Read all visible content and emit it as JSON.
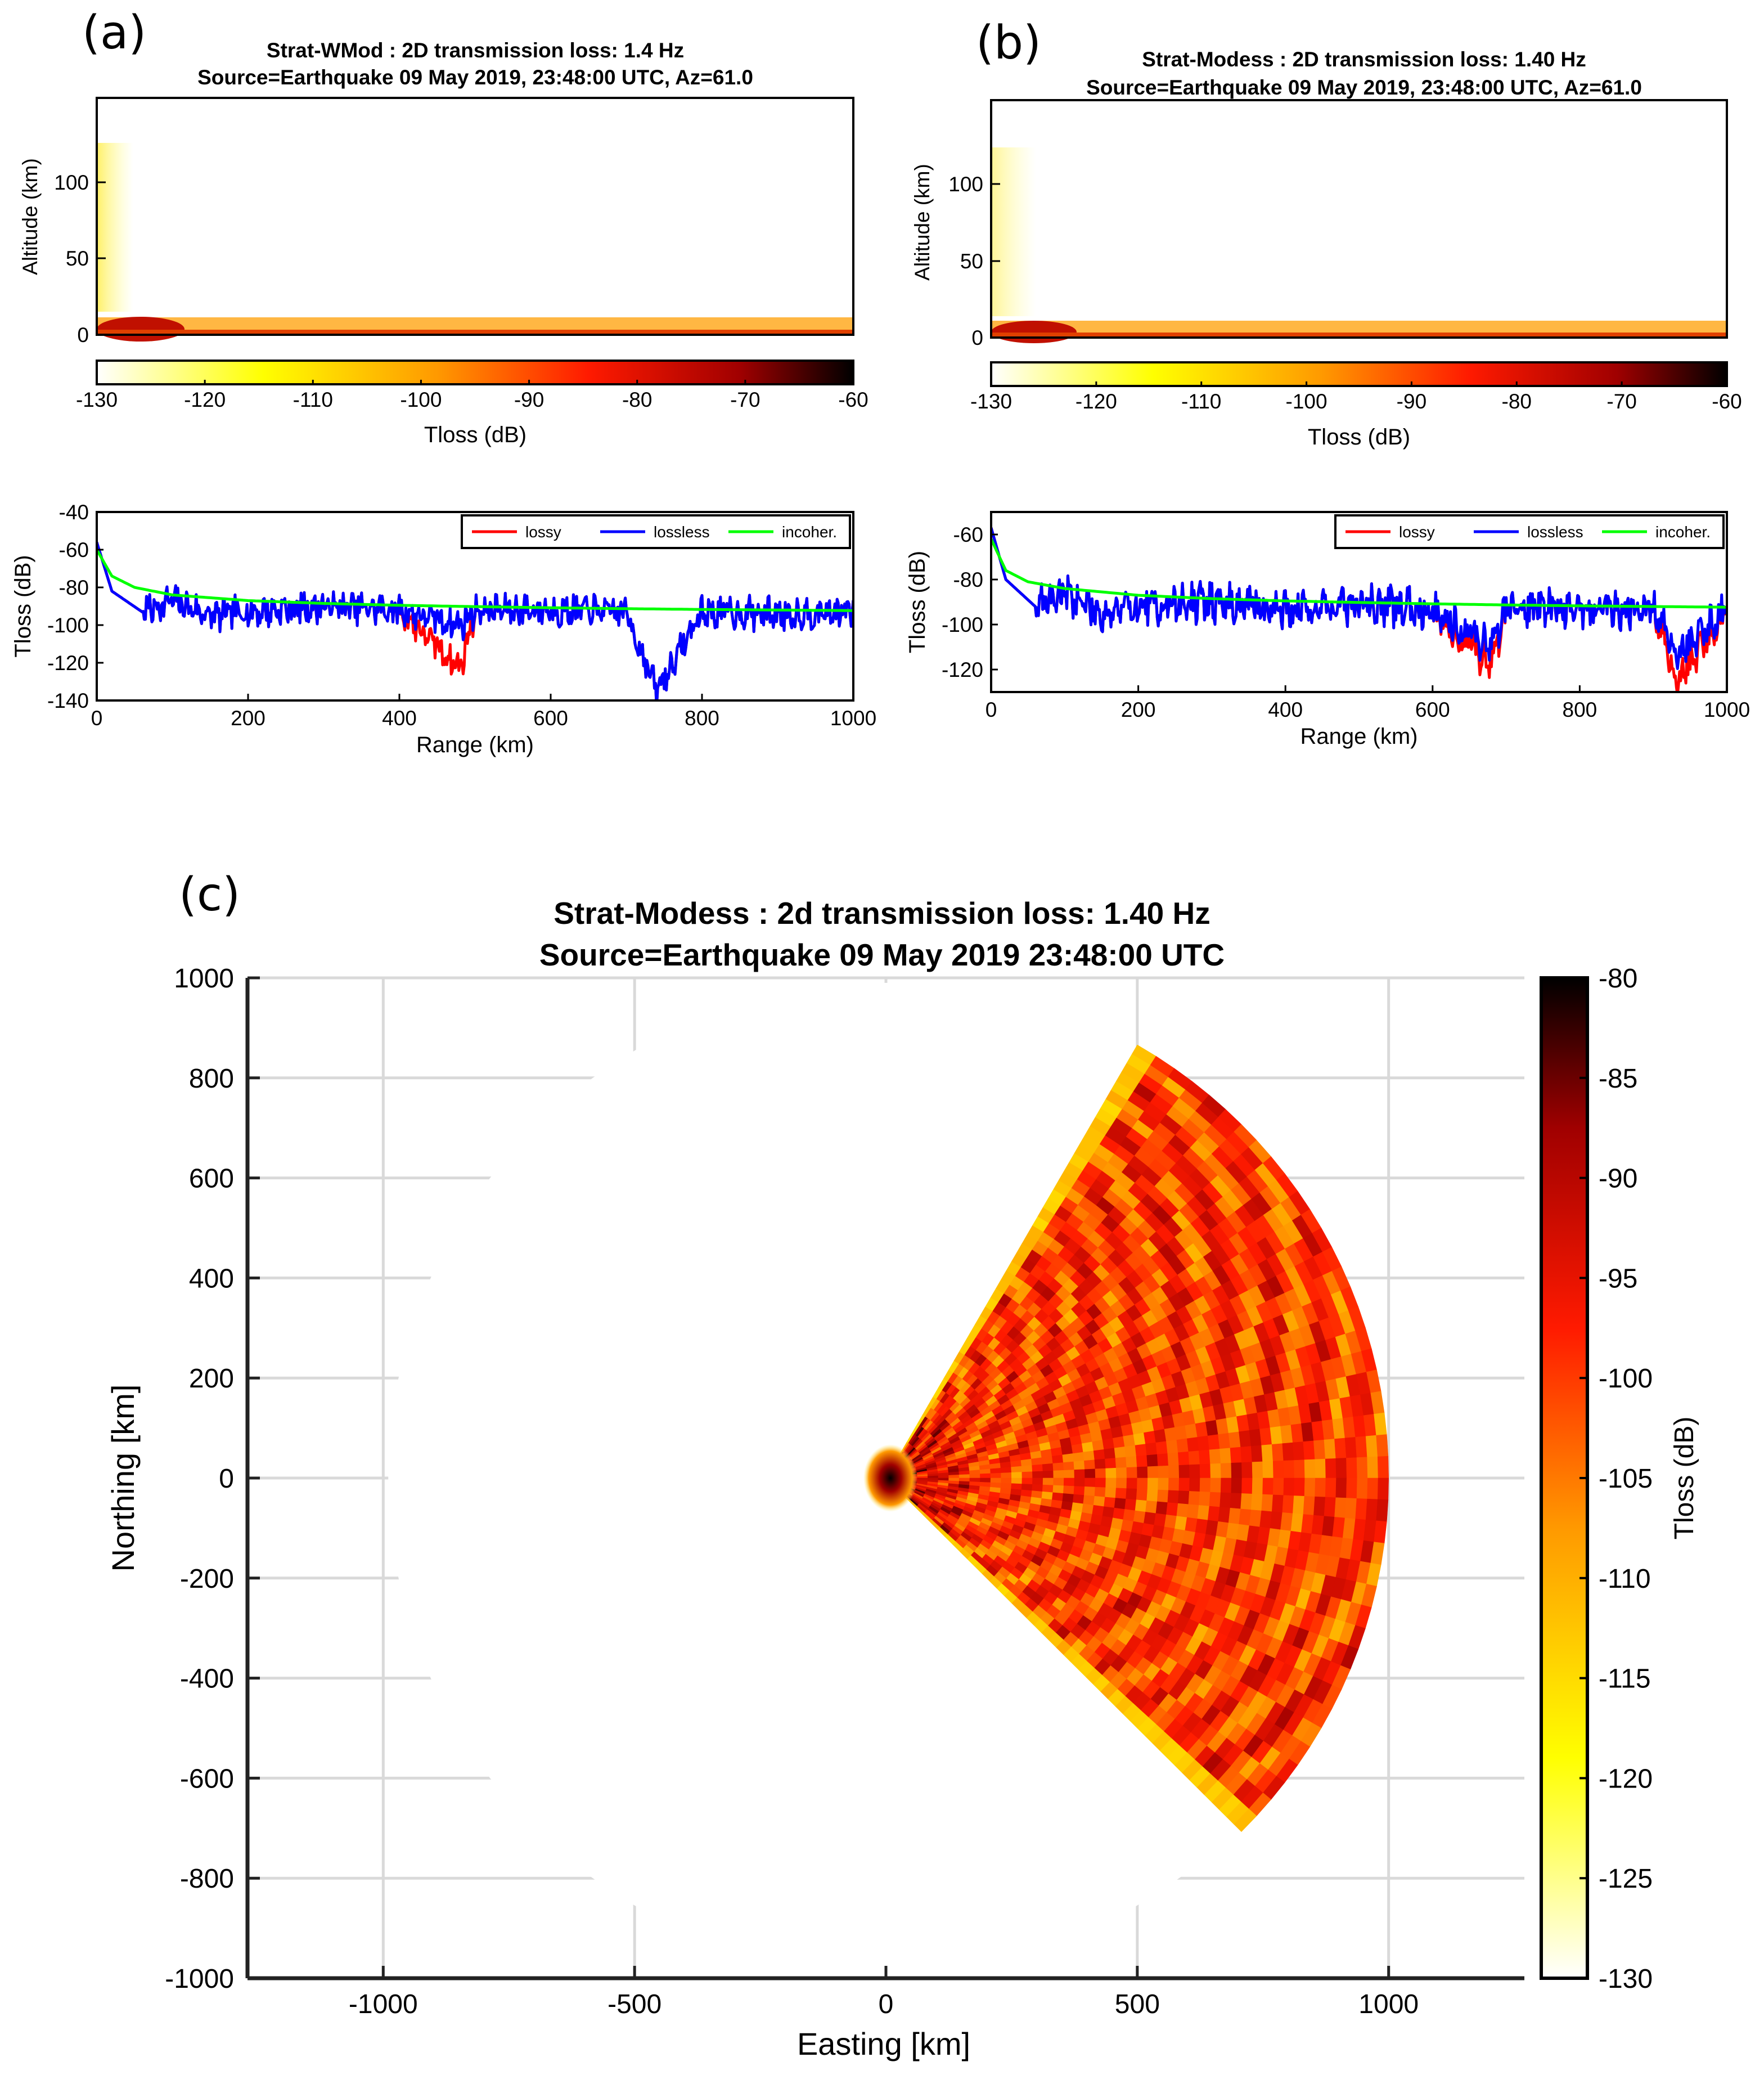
{
  "colors": {
    "colormap": [
      "#ffffff",
      "#ffff00",
      "#ff9900",
      "#ff1a00",
      "#a00000",
      "#000000"
    ],
    "lossy": "#ff0000",
    "lossless": "#0000ff",
    "incoherent": "#00ff00"
  },
  "chart_data": [
    {
      "id": "a",
      "panel_label": "(a)",
      "type": "heatmap",
      "title": [
        "Strat-WMod : 2D transmission loss: 1.4 Hz",
        "Source=Earthquake 09 May 2019, 23:48:00 UTC, Az=61.0"
      ],
      "xlim": [
        0,
        1000
      ],
      "ylabel": "Altitude (km)",
      "ylim": [
        0,
        150
      ],
      "yticks": [
        "0",
        "50",
        "100"
      ],
      "colorbar": {
        "label": "Tloss (dB)",
        "range": [
          -130,
          -60
        ],
        "ticks": [
          "-130",
          "-120",
          "-110",
          "-100",
          "-90",
          "-80",
          "-70",
          "-60"
        ]
      }
    },
    {
      "id": "a2",
      "type": "line",
      "xlabel": "Range (km)",
      "ylabel": "Tloss (dB)",
      "xlim": [
        0,
        1000
      ],
      "ylim": [
        -140,
        -40
      ],
      "xticks": [
        "0",
        "200",
        "400",
        "600",
        "800",
        "1000"
      ],
      "yticks": [
        "-140",
        "-120",
        "-100",
        "-80",
        "-60",
        "-40"
      ],
      "legend": {
        "position": "top-right"
      },
      "series": [
        {
          "name": "lossy",
          "x": [
            0,
            20,
            60,
            100,
            150,
            200,
            300,
            400,
            480,
            500,
            600,
            700,
            740,
            800,
            900,
            1000
          ],
          "y": [
            -56,
            -82,
            -93,
            -87,
            -95,
            -93,
            -90,
            -92,
            -123,
            -92,
            -92,
            -93,
            -135,
            -93,
            -94,
            -93
          ]
        },
        {
          "name": "lossless",
          "x": [
            0,
            20,
            60,
            100,
            150,
            200,
            300,
            400,
            480,
            500,
            600,
            700,
            740,
            800,
            900,
            1000
          ],
          "y": [
            -56,
            -82,
            -93,
            -87,
            -95,
            -93,
            -90,
            -92,
            -100,
            -92,
            -92,
            -93,
            -135,
            -93,
            -94,
            -93
          ]
        },
        {
          "name": "incoher.",
          "x": [
            0,
            20,
            50,
            100,
            200,
            300,
            400,
            500,
            600,
            700,
            800,
            900,
            1000
          ],
          "y": [
            -60,
            -74,
            -80,
            -84,
            -87,
            -88.5,
            -89.5,
            -90.2,
            -90.8,
            -91.3,
            -91.7,
            -92,
            -92.3
          ]
        }
      ]
    },
    {
      "id": "b",
      "panel_label": "(b)",
      "type": "heatmap",
      "title": [
        "Strat-Modess : 2D transmission loss: 1.40 Hz",
        "Source=Earthquake 09 May 2019, 23:48:00 UTC, Az=61.0"
      ],
      "xlim": [
        0,
        1000
      ],
      "ylabel": "Altitude (km)",
      "ylim": [
        0,
        150
      ],
      "yticks": [
        "0",
        "50",
        "100"
      ],
      "colorbar": {
        "label": "Tloss (dB)",
        "range": [
          -130,
          -60
        ],
        "ticks": [
          "-130",
          "-120",
          "-110",
          "-100",
          "-90",
          "-80",
          "-70",
          "-60"
        ]
      }
    },
    {
      "id": "b2",
      "type": "line",
      "xlabel": "Range (km)",
      "ylabel": "Tloss (dB)",
      "xlim": [
        0,
        1000
      ],
      "ylim": [
        -130,
        -50
      ],
      "xticks": [
        "0",
        "200",
        "400",
        "600",
        "800",
        "1000"
      ],
      "yticks": [
        "-120",
        "-100",
        "-80",
        "-60"
      ],
      "legend": {
        "position": "top-right"
      },
      "series": [
        {
          "name": "lossy",
          "x": [
            0,
            20,
            60,
            100,
            150,
            200,
            300,
            400,
            500,
            600,
            680,
            700,
            800,
            900,
            930,
            1000
          ],
          "y": [
            -57,
            -80,
            -92,
            -86,
            -95,
            -92,
            -90,
            -93,
            -91,
            -93,
            -118,
            -92,
            -93,
            -93,
            -125,
            -93
          ]
        },
        {
          "name": "lossless",
          "x": [
            0,
            20,
            60,
            100,
            150,
            200,
            300,
            400,
            500,
            600,
            680,
            700,
            800,
            900,
            930,
            1000
          ],
          "y": [
            -57,
            -80,
            -92,
            -86,
            -95,
            -92,
            -90,
            -93,
            -91,
            -93,
            -110,
            -92,
            -93,
            -93,
            -113,
            -93
          ]
        },
        {
          "name": "incoher.",
          "x": [
            0,
            20,
            50,
            100,
            200,
            300,
            400,
            500,
            600,
            700,
            800,
            900,
            1000
          ],
          "y": [
            -62,
            -76,
            -81,
            -84,
            -87,
            -88.5,
            -89.5,
            -90.2,
            -90.8,
            -91.3,
            -91.7,
            -92,
            -92.3
          ]
        }
      ]
    },
    {
      "id": "c",
      "panel_label": "(c)",
      "type": "heatmap",
      "title": [
        "Strat-Modess : 2d transmission loss: 1.40 Hz",
        "Source=Earthquake 09 May 2019 23:48:00 UTC"
      ],
      "xlabel": "Easting [km]",
      "ylabel": "Northing [km]",
      "xlim": [
        -1270,
        1270
      ],
      "ylim": [
        -1000,
        1000
      ],
      "xticks": [
        "-1000",
        "-500",
        "0",
        "500",
        "1000"
      ],
      "yticks": [
        "-1000",
        "-800",
        "-600",
        "-400",
        "-200",
        "0",
        "200",
        "400",
        "600",
        "800",
        "1000"
      ],
      "sector": {
        "azimuth_min_deg": 30,
        "azimuth_max_deg": 135,
        "max_range_km": 1000
      },
      "colorbar": {
        "label": "Tloss (dB)",
        "range": [
          -130,
          -80
        ],
        "ticks": [
          "-80",
          "-85",
          "-90",
          "-95",
          "-100",
          "-105",
          "-110",
          "-115",
          "-120",
          "-125",
          "-130"
        ]
      }
    }
  ]
}
